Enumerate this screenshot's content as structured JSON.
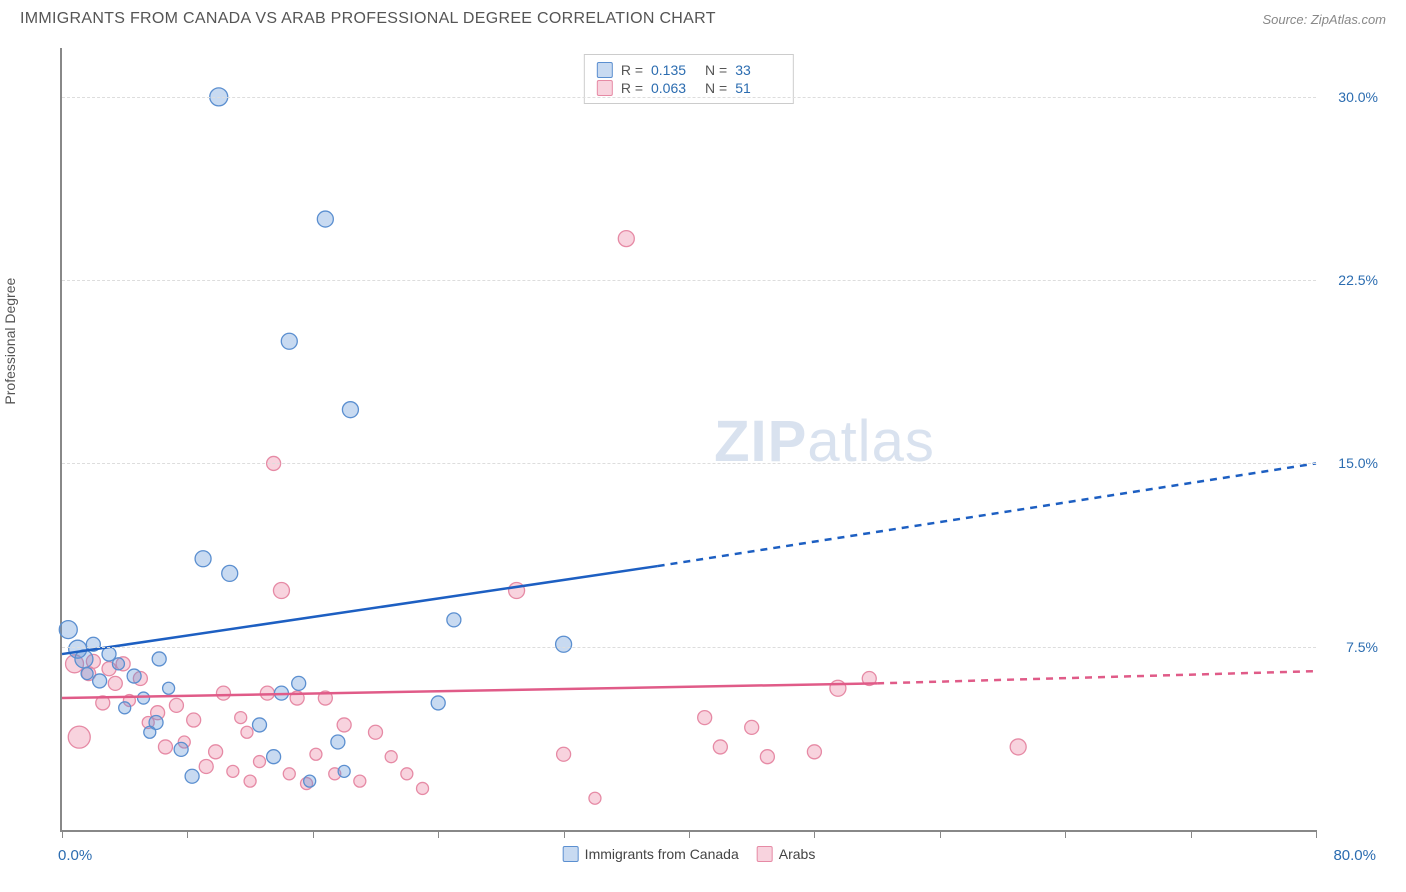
{
  "title": "IMMIGRANTS FROM CANADA VS ARAB PROFESSIONAL DEGREE CORRELATION CHART",
  "source": "Source: ZipAtlas.com",
  "ylabel": "Professional Degree",
  "watermark": "ZIPatlas",
  "chart": {
    "type": "scatter",
    "xlim": [
      0,
      80
    ],
    "ylim": [
      0,
      32
    ],
    "x_min_label": "0.0%",
    "x_max_label": "80.0%",
    "x_label_color": "#2b6cb0",
    "y_ticks": [
      7.5,
      15.0,
      22.5,
      30.0
    ],
    "y_tick_labels": [
      "7.5%",
      "15.0%",
      "22.5%",
      "30.0%"
    ],
    "y_tick_color": "#2b6cb0",
    "x_ticks": [
      0,
      8,
      16,
      24,
      32,
      40,
      48,
      56,
      64,
      72,
      80
    ],
    "grid_color": "#dddddd",
    "background_color": "#ffffff",
    "axis_color": "#888888"
  },
  "series": {
    "blue": {
      "label": "Immigrants from Canada",
      "R": "0.135",
      "N": "33",
      "fill": "rgba(96,150,215,0.35)",
      "stroke": "#5b8fd0",
      "trend_color": "#1d5fc2",
      "trend_solid": {
        "x1": 0,
        "y1": 7.2,
        "x2": 38,
        "y2": 10.8
      },
      "trend_dash": {
        "x1": 38,
        "y1": 10.8,
        "x2": 80,
        "y2": 15.0
      },
      "points": [
        {
          "x": 0.4,
          "y": 8.2,
          "r": 9
        },
        {
          "x": 1.0,
          "y": 7.4,
          "r": 9
        },
        {
          "x": 1.4,
          "y": 7.0,
          "r": 9
        },
        {
          "x": 1.6,
          "y": 6.4,
          "r": 6
        },
        {
          "x": 2.0,
          "y": 7.6,
          "r": 7
        },
        {
          "x": 2.4,
          "y": 6.1,
          "r": 7
        },
        {
          "x": 3.0,
          "y": 7.2,
          "r": 7
        },
        {
          "x": 3.6,
          "y": 6.8,
          "r": 6
        },
        {
          "x": 4.0,
          "y": 5.0,
          "r": 6
        },
        {
          "x": 4.6,
          "y": 6.3,
          "r": 7
        },
        {
          "x": 5.2,
          "y": 5.4,
          "r": 6
        },
        {
          "x": 6.0,
          "y": 4.4,
          "r": 7
        },
        {
          "x": 6.2,
          "y": 7.0,
          "r": 7
        },
        {
          "x": 6.8,
          "y": 5.8,
          "r": 6
        },
        {
          "x": 7.6,
          "y": 3.3,
          "r": 7
        },
        {
          "x": 8.3,
          "y": 2.2,
          "r": 7
        },
        {
          "x": 9.0,
          "y": 11.1,
          "r": 8
        },
        {
          "x": 10.0,
          "y": 30.0,
          "r": 9
        },
        {
          "x": 10.7,
          "y": 10.5,
          "r": 8
        },
        {
          "x": 12.6,
          "y": 4.3,
          "r": 7
        },
        {
          "x": 13.5,
          "y": 3.0,
          "r": 7
        },
        {
          "x": 14.0,
          "y": 5.6,
          "r": 7
        },
        {
          "x": 14.5,
          "y": 20.0,
          "r": 8
        },
        {
          "x": 15.1,
          "y": 6.0,
          "r": 7
        },
        {
          "x": 16.8,
          "y": 25.0,
          "r": 8
        },
        {
          "x": 17.6,
          "y": 3.6,
          "r": 7
        },
        {
          "x": 18.0,
          "y": 2.4,
          "r": 6
        },
        {
          "x": 18.4,
          "y": 17.2,
          "r": 8
        },
        {
          "x": 24.0,
          "y": 5.2,
          "r": 7
        },
        {
          "x": 25.0,
          "y": 8.6,
          "r": 7
        },
        {
          "x": 32.0,
          "y": 7.6,
          "r": 8
        },
        {
          "x": 15.8,
          "y": 2.0,
          "r": 6
        },
        {
          "x": 5.6,
          "y": 4.0,
          "r": 6
        }
      ]
    },
    "pink": {
      "label": "Arabs",
      "R": "0.063",
      "N": "51",
      "fill": "rgba(235,130,160,0.35)",
      "stroke": "#e68aa5",
      "trend_color": "#e05b88",
      "trend_solid": {
        "x1": 0,
        "y1": 5.4,
        "x2": 52,
        "y2": 6.0
      },
      "trend_dash": {
        "x1": 52,
        "y1": 6.0,
        "x2": 80,
        "y2": 6.5
      },
      "points": [
        {
          "x": 0.8,
          "y": 6.8,
          "r": 9
        },
        {
          "x": 1.1,
          "y": 3.8,
          "r": 11
        },
        {
          "x": 1.7,
          "y": 6.4,
          "r": 7
        },
        {
          "x": 2.0,
          "y": 6.9,
          "r": 7
        },
        {
          "x": 2.6,
          "y": 5.2,
          "r": 7
        },
        {
          "x": 3.0,
          "y": 6.6,
          "r": 7
        },
        {
          "x": 3.4,
          "y": 6.0,
          "r": 7
        },
        {
          "x": 3.9,
          "y": 6.8,
          "r": 7
        },
        {
          "x": 4.3,
          "y": 5.3,
          "r": 6
        },
        {
          "x": 5.0,
          "y": 6.2,
          "r": 7
        },
        {
          "x": 5.5,
          "y": 4.4,
          "r": 6
        },
        {
          "x": 6.1,
          "y": 4.8,
          "r": 7
        },
        {
          "x": 6.6,
          "y": 3.4,
          "r": 7
        },
        {
          "x": 7.3,
          "y": 5.1,
          "r": 7
        },
        {
          "x": 7.8,
          "y": 3.6,
          "r": 6
        },
        {
          "x": 8.4,
          "y": 4.5,
          "r": 7
        },
        {
          "x": 9.2,
          "y": 2.6,
          "r": 7
        },
        {
          "x": 9.8,
          "y": 3.2,
          "r": 7
        },
        {
          "x": 10.3,
          "y": 5.6,
          "r": 7
        },
        {
          "x": 10.9,
          "y": 2.4,
          "r": 6
        },
        {
          "x": 11.4,
          "y": 4.6,
          "r": 6
        },
        {
          "x": 12.0,
          "y": 2.0,
          "r": 6
        },
        {
          "x": 12.6,
          "y": 2.8,
          "r": 6
        },
        {
          "x": 13.1,
          "y": 5.6,
          "r": 7
        },
        {
          "x": 13.5,
          "y": 15.0,
          "r": 7
        },
        {
          "x": 14.0,
          "y": 9.8,
          "r": 8
        },
        {
          "x": 14.5,
          "y": 2.3,
          "r": 6
        },
        {
          "x": 15.0,
          "y": 5.4,
          "r": 7
        },
        {
          "x": 15.6,
          "y": 1.9,
          "r": 6
        },
        {
          "x": 16.2,
          "y": 3.1,
          "r": 6
        },
        {
          "x": 16.8,
          "y": 5.4,
          "r": 7
        },
        {
          "x": 17.4,
          "y": 2.3,
          "r": 6
        },
        {
          "x": 18.0,
          "y": 4.3,
          "r": 7
        },
        {
          "x": 19.0,
          "y": 2.0,
          "r": 6
        },
        {
          "x": 20.0,
          "y": 4.0,
          "r": 7
        },
        {
          "x": 21.0,
          "y": 3.0,
          "r": 6
        },
        {
          "x": 22.0,
          "y": 2.3,
          "r": 6
        },
        {
          "x": 23.0,
          "y": 1.7,
          "r": 6
        },
        {
          "x": 29.0,
          "y": 9.8,
          "r": 8
        },
        {
          "x": 32.0,
          "y": 3.1,
          "r": 7
        },
        {
          "x": 34.0,
          "y": 1.3,
          "r": 6
        },
        {
          "x": 36.0,
          "y": 24.2,
          "r": 8
        },
        {
          "x": 41.0,
          "y": 4.6,
          "r": 7
        },
        {
          "x": 42.0,
          "y": 3.4,
          "r": 7
        },
        {
          "x": 44.0,
          "y": 4.2,
          "r": 7
        },
        {
          "x": 45.0,
          "y": 3.0,
          "r": 7
        },
        {
          "x": 48.0,
          "y": 3.2,
          "r": 7
        },
        {
          "x": 49.5,
          "y": 5.8,
          "r": 8
        },
        {
          "x": 51.5,
          "y": 6.2,
          "r": 7
        },
        {
          "x": 61.0,
          "y": 3.4,
          "r": 8
        },
        {
          "x": 11.8,
          "y": 4.0,
          "r": 6
        }
      ]
    }
  },
  "legend": {
    "r_label": "R =",
    "n_label": "N ="
  }
}
